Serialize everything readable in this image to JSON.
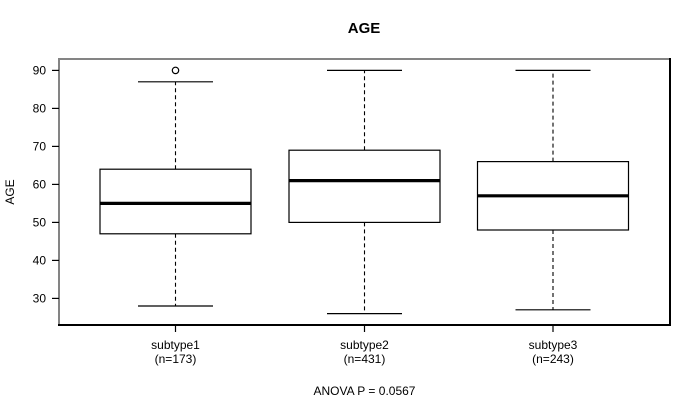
{
  "title": "AGE",
  "footer": "ANOVA P = 0.0567",
  "colors": {
    "frame_light": "#848484",
    "frame_dark": "#000000",
    "box_stroke": "#000000",
    "median": "#000000",
    "background": "#ffffff"
  },
  "chart_data": {
    "type": "boxplot",
    "title": "AGE",
    "xlabel": "",
    "ylabel": "AGE",
    "ylim": [
      23,
      93
    ],
    "yticks": [
      30,
      40,
      50,
      60,
      70,
      80,
      90
    ],
    "grid": false,
    "annotation": "ANOVA P = 0.0567",
    "groups": [
      {
        "label": "subtype1",
        "sublabel": "(n=173)",
        "n": 173,
        "whisker_low": 28,
        "q1": 47,
        "median": 55,
        "q3": 64,
        "whisker_high": 87,
        "outliers": [
          90
        ]
      },
      {
        "label": "subtype2",
        "sublabel": "(n=431)",
        "n": 431,
        "whisker_low": 26,
        "q1": 50,
        "median": 61,
        "q3": 69,
        "whisker_high": 90,
        "outliers": []
      },
      {
        "label": "subtype3",
        "sublabel": "(n=243)",
        "n": 243,
        "whisker_low": 27,
        "q1": 48,
        "median": 57,
        "q3": 66,
        "whisker_high": 90,
        "outliers": []
      }
    ]
  }
}
